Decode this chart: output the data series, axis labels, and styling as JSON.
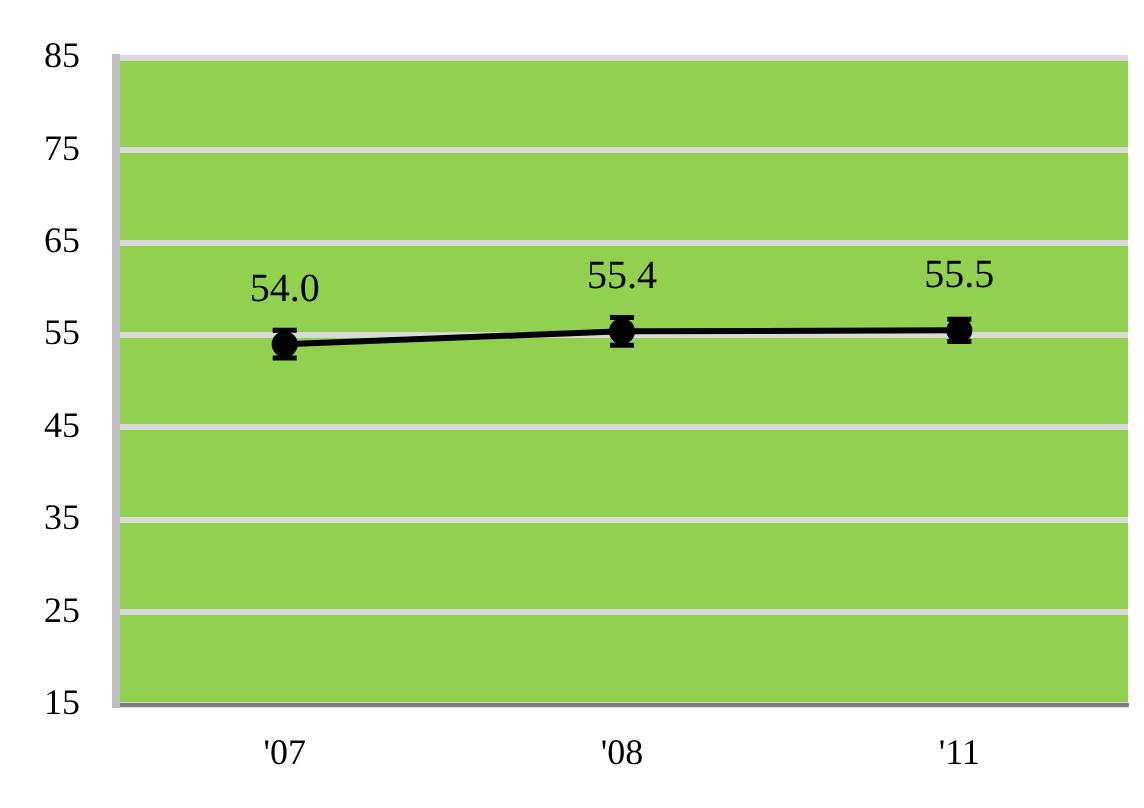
{
  "chart_data": {
    "type": "line",
    "categories": [
      "'07",
      "'08",
      "'11"
    ],
    "series": [
      {
        "color": "#000000",
        "values": [
          54.0,
          55.4,
          55.5
        ],
        "errors": [
          1.5,
          1.5,
          1.2
        ],
        "value_labels": [
          "54.0",
          "55.4",
          "55.5"
        ]
      }
    ],
    "ylim": [
      15,
      85
    ],
    "yticks": [
      15,
      25,
      35,
      45,
      55,
      65,
      75,
      85
    ],
    "grid": "y",
    "legend": false,
    "marker": "circle",
    "line_style": "solid"
  }
}
